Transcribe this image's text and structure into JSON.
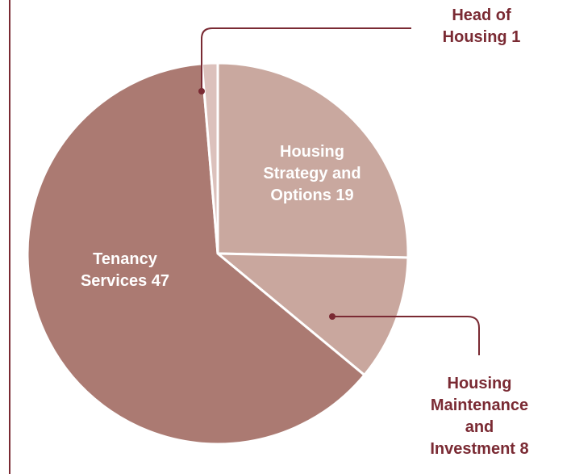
{
  "chart_data": {
    "type": "pie",
    "categories": [
      "Head of Housing",
      "Housing Strategy and Options",
      "Housing Maintenance and Investment",
      "Tenancy Services"
    ],
    "values": [
      1,
      19,
      8,
      47
    ],
    "colors": [
      "#dcc1bc",
      "#c9a89f",
      "#c9a79e",
      "#ab7a72"
    ]
  }
}
